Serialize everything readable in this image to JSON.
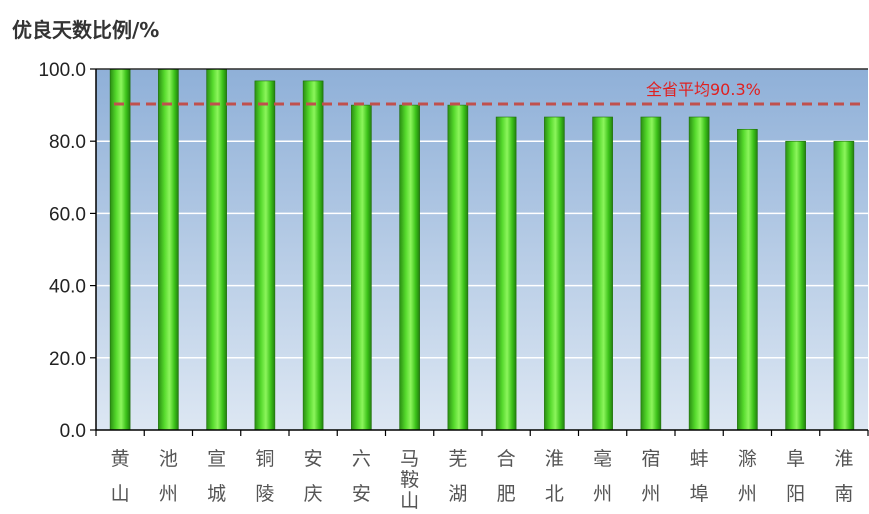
{
  "chart_data": {
    "type": "bar",
    "title": "优良天数比例/%",
    "categories": [
      "黄山",
      "池州",
      "宣城",
      "铜陵",
      "安庆",
      "六安",
      "马鞍山",
      "芜湖",
      "合肥",
      "淮北",
      "亳州",
      "宿州",
      "蚌埠",
      "滁州",
      "阜阳",
      "淮南"
    ],
    "values": [
      100.0,
      100.0,
      100.0,
      96.7,
      96.7,
      90.0,
      90.0,
      90.0,
      86.7,
      86.7,
      86.7,
      86.7,
      86.7,
      83.3,
      80.0,
      80.0
    ],
    "ylim": [
      0,
      100
    ],
    "yticks": [
      0,
      20,
      40,
      60,
      80,
      100
    ],
    "ytick_labels": [
      "0.0",
      "20.0",
      "40.0",
      "60.0",
      "80.0",
      "100.0"
    ],
    "xlabel": "",
    "ylabel": "",
    "grid": true,
    "reference_line": {
      "label": "全省平均90.3%",
      "value": 90.3,
      "color": "#c0504d"
    },
    "bar_color": "#3cc21a",
    "background_gradient": [
      "#8fb0d8",
      "#dde7f3"
    ]
  }
}
